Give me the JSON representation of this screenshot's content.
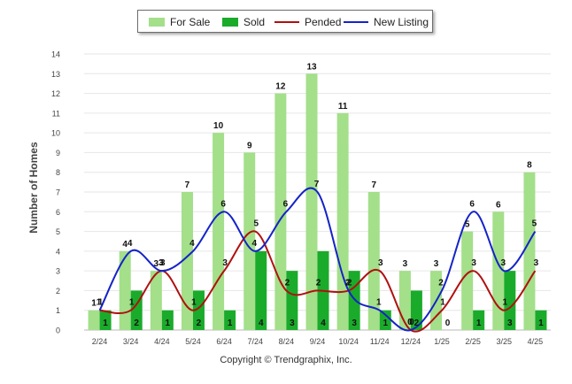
{
  "chart_data": {
    "type": "bar",
    "categories": [
      "2/24",
      "3/24",
      "4/24",
      "5/24",
      "6/24",
      "7/24",
      "8/24",
      "9/24",
      "10/24",
      "11/24",
      "12/24",
      "1/25",
      "2/25",
      "3/25",
      "4/25"
    ],
    "series": [
      {
        "name": "For Sale",
        "type": "bar",
        "color": "#a4df8a",
        "values": [
          1,
          4,
          3,
          7,
          10,
          9,
          12,
          13,
          11,
          7,
          3,
          3,
          5,
          6,
          8
        ]
      },
      {
        "name": "Sold",
        "type": "bar",
        "color": "#1aab2b",
        "values": [
          1,
          2,
          1,
          2,
          1,
          4,
          3,
          4,
          3,
          1,
          2,
          0,
          1,
          3,
          1
        ]
      },
      {
        "name": "Pended",
        "type": "line",
        "color": "#b01010",
        "values": [
          1,
          1,
          3,
          1,
          3,
          5,
          2,
          2,
          2,
          3,
          0,
          1,
          3,
          1,
          3
        ]
      },
      {
        "name": "New Listing",
        "type": "line",
        "color": "#1523c8",
        "values": [
          1,
          4,
          3,
          4,
          6,
          4,
          6,
          7,
          2,
          1,
          0,
          2,
          6,
          3,
          5
        ]
      }
    ],
    "ylabel": "Number of Homes",
    "xlabel": "",
    "ylim": [
      0,
      14
    ],
    "yticks": [
      0,
      1,
      2,
      3,
      4,
      5,
      6,
      7,
      8,
      9,
      10,
      11,
      12,
      13,
      14
    ],
    "grid": true,
    "legend_position": "top-center"
  },
  "footer": {
    "copyright": "Copyright © Trendgraphix, Inc."
  }
}
